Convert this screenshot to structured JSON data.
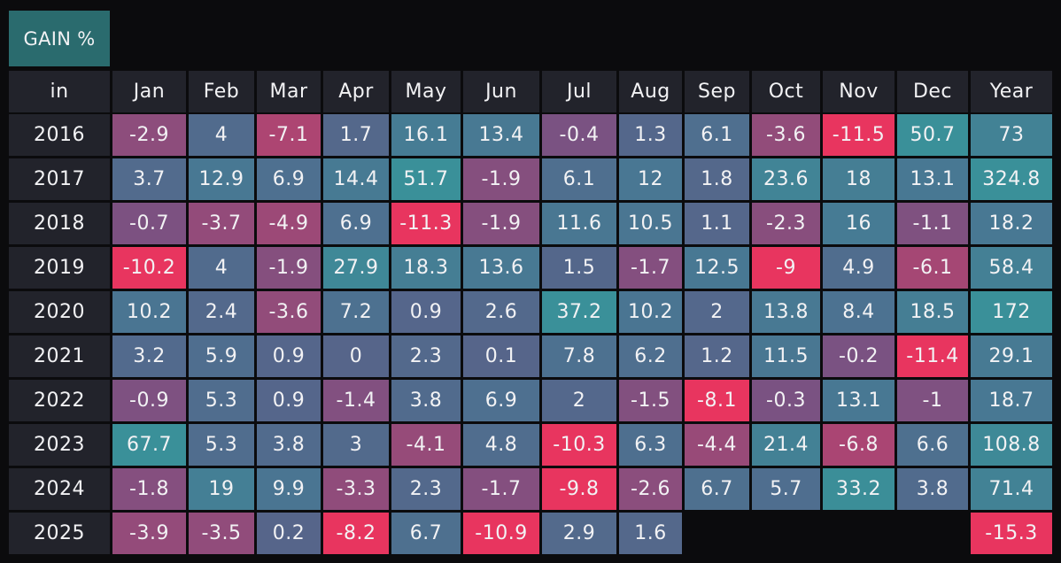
{
  "chart_data": {
    "type": "heatmap",
    "title": "GAIN %",
    "row_header_label": "in",
    "columns": [
      "Jan",
      "Feb",
      "Mar",
      "Apr",
      "May",
      "Jun",
      "Jul",
      "Aug",
      "Sep",
      "Oct",
      "Nov",
      "Dec",
      "Year"
    ],
    "rows": [
      "2016",
      "2017",
      "2018",
      "2019",
      "2020",
      "2021",
      "2022",
      "2023",
      "2024",
      "2025"
    ],
    "values": [
      [
        -2.9,
        4,
        -7.1,
        1.7,
        16.1,
        13.4,
        -0.4,
        1.3,
        6.1,
        -3.6,
        -11.5,
        50.7,
        73
      ],
      [
        3.7,
        12.9,
        6.9,
        14.4,
        51.7,
        -1.9,
        6.1,
        12,
        1.8,
        23.6,
        18,
        13.1,
        324.8
      ],
      [
        -0.7,
        -3.7,
        -4.9,
        6.9,
        -11.3,
        -1.9,
        11.6,
        10.5,
        1.1,
        -2.3,
        16,
        -1.1,
        18.2
      ],
      [
        -10.2,
        4,
        -1.9,
        27.9,
        18.3,
        13.6,
        1.5,
        -1.7,
        12.5,
        -9,
        4.9,
        -6.1,
        58.4
      ],
      [
        10.2,
        2.4,
        -3.6,
        7.2,
        0.9,
        2.6,
        37.2,
        10.2,
        2,
        13.8,
        8.4,
        18.5,
        172
      ],
      [
        3.2,
        5.9,
        0.9,
        0,
        2.3,
        0.1,
        7.8,
        6.2,
        1.2,
        11.5,
        -0.2,
        -11.4,
        29.1
      ],
      [
        -0.9,
        5.3,
        0.9,
        -1.4,
        3.8,
        6.9,
        2,
        -1.5,
        -8.1,
        -0.3,
        13.1,
        -1,
        18.7
      ],
      [
        67.7,
        5.3,
        3.8,
        3,
        -4.1,
        4.8,
        -10.3,
        6.3,
        -4.4,
        21.4,
        -6.8,
        6.6,
        108.8
      ],
      [
        -1.8,
        19,
        9.9,
        -3.3,
        2.3,
        -1.7,
        -9.8,
        -2.6,
        6.7,
        5.7,
        33.2,
        3.8,
        71.4
      ],
      [
        -3.9,
        -3.5,
        0.2,
        -8.2,
        6.7,
        -10.9,
        2.9,
        1.6,
        null,
        null,
        null,
        null,
        -15.3
      ]
    ],
    "colors": {
      "background": "#0b0b0d",
      "header": "#22232b",
      "title": "#2a6b6e",
      "negative_strong": "#e8355f",
      "negative_mild": "#7a5282",
      "neutral": "#56658a",
      "positive_mild": "#4a7592",
      "positive_strong": "#3a9099",
      "text": "#f2f2f4"
    }
  }
}
